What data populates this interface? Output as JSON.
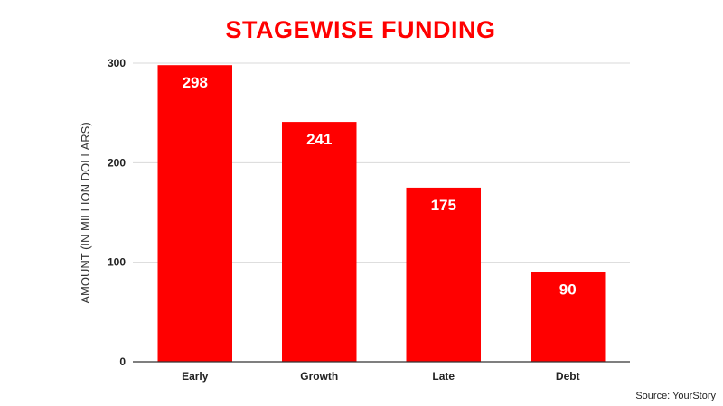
{
  "chart_data": {
    "type": "bar",
    "title": "STAGEWISE FUNDING",
    "xlabel": "",
    "ylabel": "AMOUNT (IN MILLION DOLLARS)",
    "categories": [
      "Early",
      "Growth",
      "Late",
      "Debt"
    ],
    "values": [
      298,
      241,
      175,
      90
    ],
    "data_labels": [
      "298",
      "241",
      "175",
      "90"
    ],
    "ylim": [
      0,
      300
    ],
    "yticks": [
      "0",
      "100",
      "200",
      "300"
    ],
    "ytick_values": [
      0,
      100,
      200,
      300
    ],
    "grid": true,
    "legend": "none",
    "bar_color": "#ff0000",
    "title_color": "#ff0000"
  },
  "footer": {
    "source": "Source: YourStory"
  }
}
